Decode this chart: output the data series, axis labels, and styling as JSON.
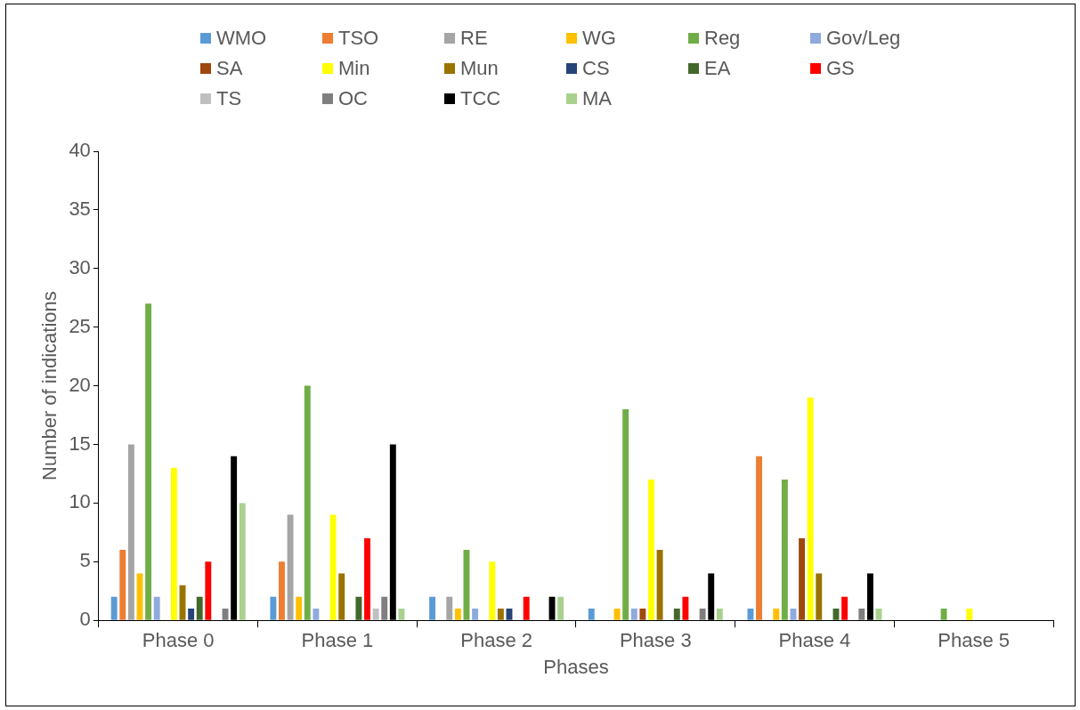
{
  "chart_data": {
    "type": "bar",
    "xlabel": "Phases",
    "ylabel": "Number of indications",
    "categories": [
      "Phase 0",
      "Phase 1",
      "Phase 2",
      "Phase 3",
      "Phase 4",
      "Phase 5"
    ],
    "ylim": [
      0,
      40
    ],
    "yticks": [
      0,
      5,
      10,
      15,
      20,
      25,
      30,
      35,
      40
    ],
    "grid": false,
    "legend": "top",
    "series": [
      {
        "name": "WMO",
        "color": "#5b9bd5",
        "values": [
          2,
          2,
          2,
          1,
          1,
          0
        ]
      },
      {
        "name": "TSO",
        "color": "#ed7d31",
        "values": [
          6,
          5,
          0,
          0,
          14,
          0
        ]
      },
      {
        "name": "RE",
        "color": "#a5a5a5",
        "values": [
          15,
          9,
          2,
          0,
          0,
          0
        ]
      },
      {
        "name": "WG",
        "color": "#ffc000",
        "values": [
          4,
          2,
          1,
          1,
          1,
          0
        ]
      },
      {
        "name": "Reg",
        "color": "#70ad47",
        "values": [
          27,
          20,
          6,
          18,
          12,
          1
        ]
      },
      {
        "name": "Gov/Leg",
        "color": "#8faadc",
        "values": [
          2,
          1,
          1,
          1,
          1,
          0
        ]
      },
      {
        "name": "SA",
        "color": "#9e480e",
        "values": [
          0,
          0,
          0,
          1,
          7,
          0
        ]
      },
      {
        "name": "Min",
        "color": "#ffff00",
        "values": [
          13,
          9,
          5,
          12,
          19,
          1
        ]
      },
      {
        "name": "Mun",
        "color": "#997300",
        "values": [
          3,
          4,
          1,
          6,
          4,
          0
        ]
      },
      {
        "name": "CS",
        "color": "#264478",
        "values": [
          1,
          0,
          1,
          0,
          0,
          0
        ]
      },
      {
        "name": "EA",
        "color": "#43682b",
        "values": [
          2,
          2,
          0,
          1,
          1,
          0
        ]
      },
      {
        "name": "GS",
        "color": "#ff0000",
        "values": [
          5,
          7,
          2,
          2,
          2,
          0
        ]
      },
      {
        "name": "TS",
        "color": "#bfbfbf",
        "values": [
          0,
          1,
          0,
          0,
          0,
          0
        ]
      },
      {
        "name": "OC",
        "color": "#7f7f7f",
        "values": [
          1,
          2,
          0,
          1,
          1,
          0
        ]
      },
      {
        "name": "TCC",
        "color": "#000000",
        "values": [
          14,
          15,
          2,
          4,
          4,
          0
        ]
      },
      {
        "name": "MA",
        "color": "#a9d18e",
        "values": [
          10,
          1,
          2,
          1,
          1,
          0
        ]
      }
    ]
  }
}
